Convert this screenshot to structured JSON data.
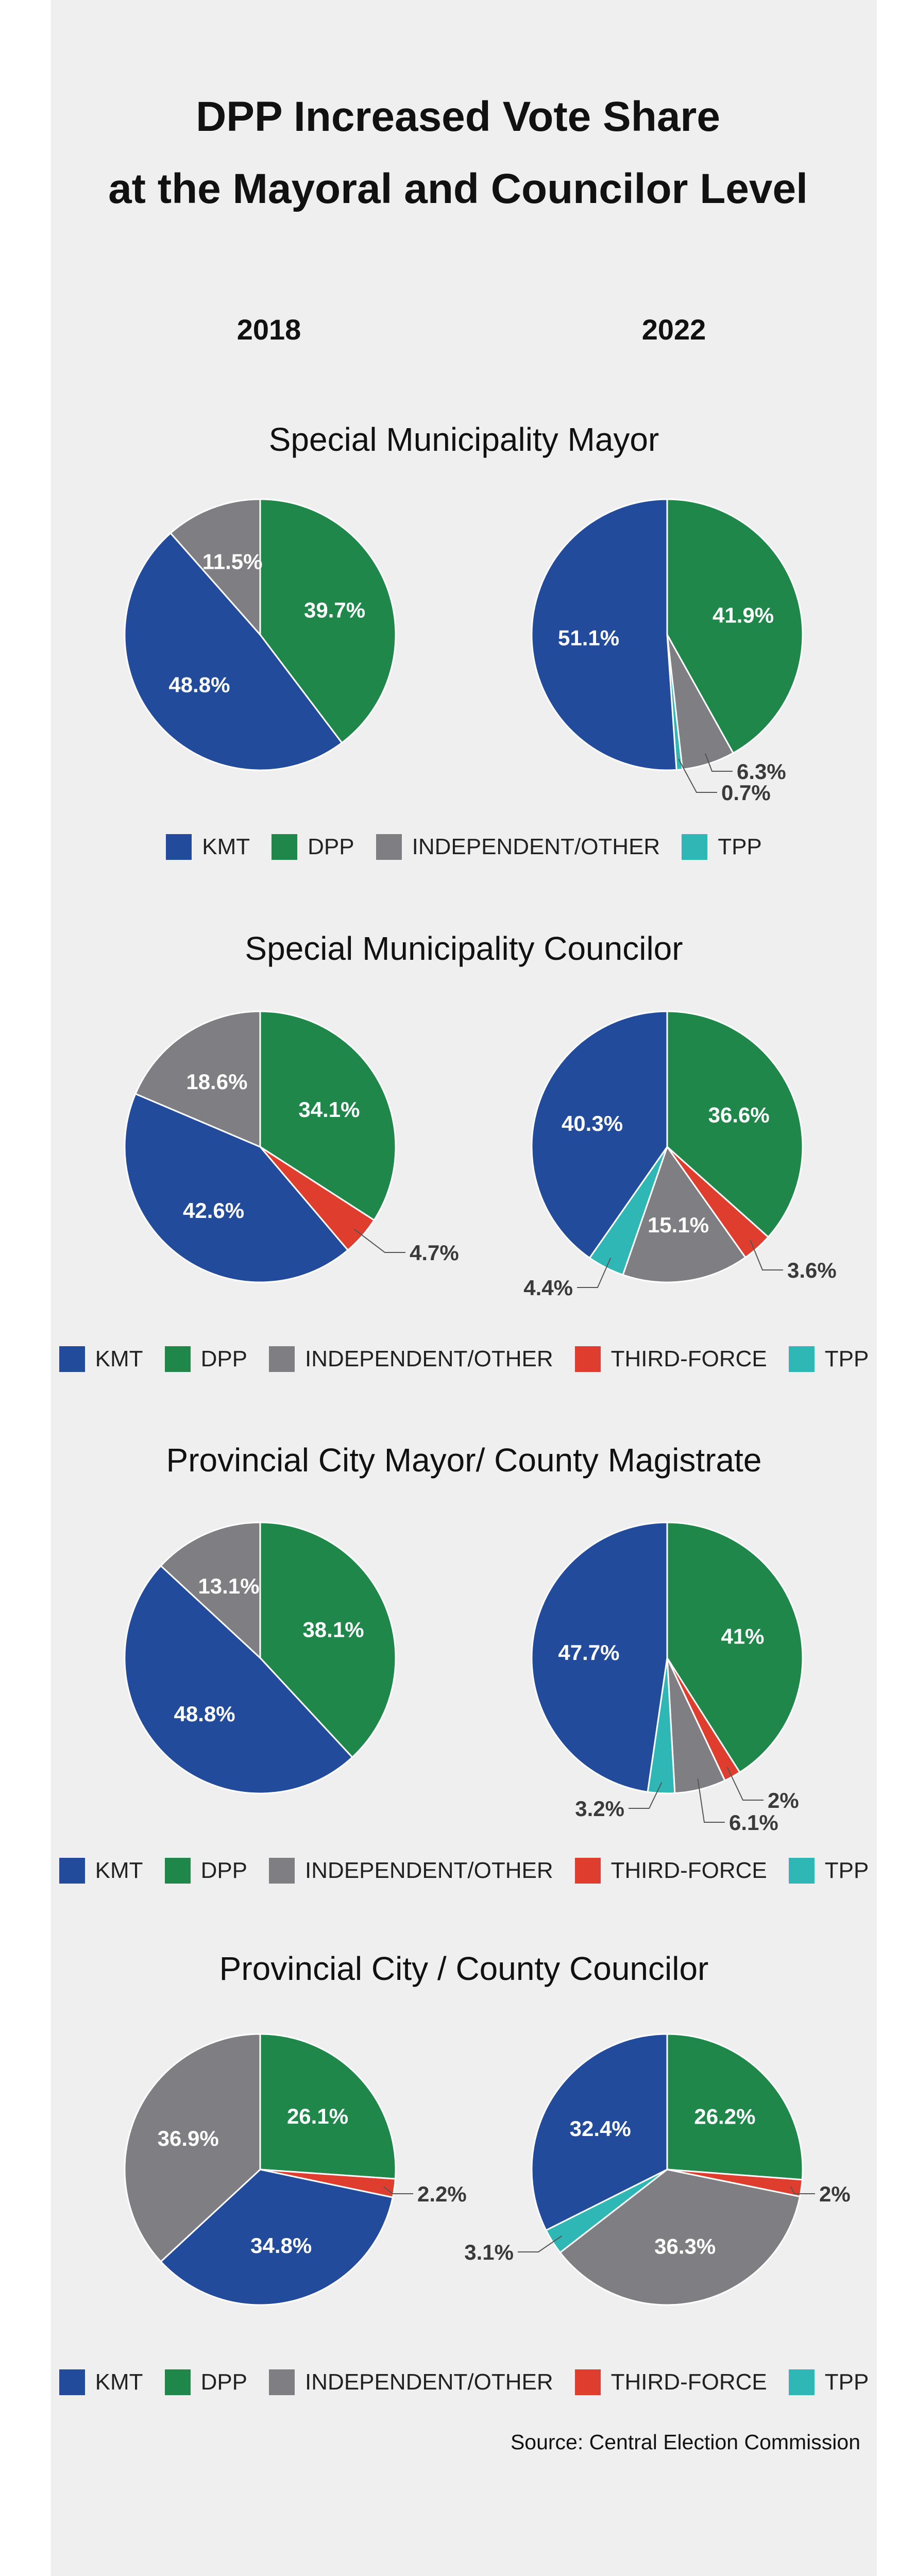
{
  "header": {
    "title_line1": "DPP Increased Vote Share",
    "title_line2": "at the Mayoral and Councilor Level",
    "year_left": "2018",
    "year_right": "2022"
  },
  "colors": {
    "KMT": "#234b9b",
    "DPP": "#1f8749",
    "INDEPENDENT/OTHER": "#7e7e83",
    "THIRD-FORCE": "#df3e2f",
    "TPP": "#2eb7b5"
  },
  "chart_data": [
    {
      "type": "pie",
      "title": "Special Municipality Mayor",
      "legend": [
        "KMT",
        "DPP",
        "INDEPENDENT/OTHER",
        "TPP"
      ],
      "pies": [
        {
          "year": "2018",
          "slices": [
            {
              "party": "DPP",
              "value": 39.7,
              "label": "39.7%"
            },
            {
              "party": "KMT",
              "value": 48.8,
              "label": "48.8%"
            },
            {
              "party": "INDEPENDENT/OTHER",
              "value": 11.5,
              "label": "11.5%"
            }
          ]
        },
        {
          "year": "2022",
          "slices": [
            {
              "party": "DPP",
              "value": 41.9,
              "label": "41.9%"
            },
            {
              "party": "INDEPENDENT/OTHER",
              "value": 6.3,
              "label": "6.3%"
            },
            {
              "party": "TPP",
              "value": 0.7,
              "label": "0.7%"
            },
            {
              "party": "KMT",
              "value": 51.1,
              "label": "51.1%"
            }
          ]
        }
      ]
    },
    {
      "type": "pie",
      "title": "Special Municipality Councilor",
      "legend": [
        "KMT",
        "DPP",
        "INDEPENDENT/OTHER",
        "THIRD-FORCE",
        "TPP"
      ],
      "pies": [
        {
          "year": "2018",
          "slices": [
            {
              "party": "DPP",
              "value": 34.1,
              "label": "34.1%"
            },
            {
              "party": "THIRD-FORCE",
              "value": 4.7,
              "label": "4.7%"
            },
            {
              "party": "KMT",
              "value": 42.6,
              "label": "42.6%"
            },
            {
              "party": "INDEPENDENT/OTHER",
              "value": 18.6,
              "label": "18.6%"
            }
          ]
        },
        {
          "year": "2022",
          "slices": [
            {
              "party": "DPP",
              "value": 36.6,
              "label": "36.6%"
            },
            {
              "party": "THIRD-FORCE",
              "value": 3.6,
              "label": "3.6%"
            },
            {
              "party": "INDEPENDENT/OTHER",
              "value": 15.1,
              "label": "15.1%"
            },
            {
              "party": "TPP",
              "value": 4.4,
              "label": "4.4%"
            },
            {
              "party": "KMT",
              "value": 40.3,
              "label": "40.3%"
            }
          ]
        }
      ]
    },
    {
      "type": "pie",
      "title": "Provincial City Mayor/ County Magistrate",
      "legend": [
        "KMT",
        "DPP",
        "INDEPENDENT/OTHER",
        "THIRD-FORCE",
        "TPP"
      ],
      "pies": [
        {
          "year": "2018",
          "slices": [
            {
              "party": "DPP",
              "value": 38.1,
              "label": "38.1%"
            },
            {
              "party": "KMT",
              "value": 48.8,
              "label": "48.8%"
            },
            {
              "party": "INDEPENDENT/OTHER",
              "value": 13.1,
              "label": "13.1%"
            }
          ]
        },
        {
          "year": "2022",
          "slices": [
            {
              "party": "DPP",
              "value": 41,
              "label": "41%"
            },
            {
              "party": "THIRD-FORCE",
              "value": 2,
              "label": "2%"
            },
            {
              "party": "INDEPENDENT/OTHER",
              "value": 6.1,
              "label": "6.1%"
            },
            {
              "party": "TPP",
              "value": 3.2,
              "label": "3.2%"
            },
            {
              "party": "KMT",
              "value": 47.7,
              "label": "47.7%"
            }
          ]
        }
      ]
    },
    {
      "type": "pie",
      "title": "Provincial City / County Councilor",
      "legend": [
        "KMT",
        "DPP",
        "INDEPENDENT/OTHER",
        "THIRD-FORCE",
        "TPP"
      ],
      "pies": [
        {
          "year": "2018",
          "slices": [
            {
              "party": "DPP",
              "value": 26.1,
              "label": "26.1%"
            },
            {
              "party": "THIRD-FORCE",
              "value": 2.2,
              "label": "2.2%"
            },
            {
              "party": "KMT",
              "value": 34.8,
              "label": "34.8%"
            },
            {
              "party": "INDEPENDENT/OTHER",
              "value": 36.9,
              "label": "36.9%"
            }
          ]
        },
        {
          "year": "2022",
          "slices": [
            {
              "party": "DPP",
              "value": 26.2,
              "label": "26.2%"
            },
            {
              "party": "THIRD-FORCE",
              "value": 2,
              "label": "2%"
            },
            {
              "party": "INDEPENDENT/OTHER",
              "value": 36.3,
              "label": "36.3%"
            },
            {
              "party": "TPP",
              "value": 3.1,
              "label": "3.1%"
            },
            {
              "party": "KMT",
              "value": 32.4,
              "label": "32.4%"
            }
          ]
        }
      ]
    }
  ],
  "footer": {
    "source": "Source: Central Election Commission"
  }
}
